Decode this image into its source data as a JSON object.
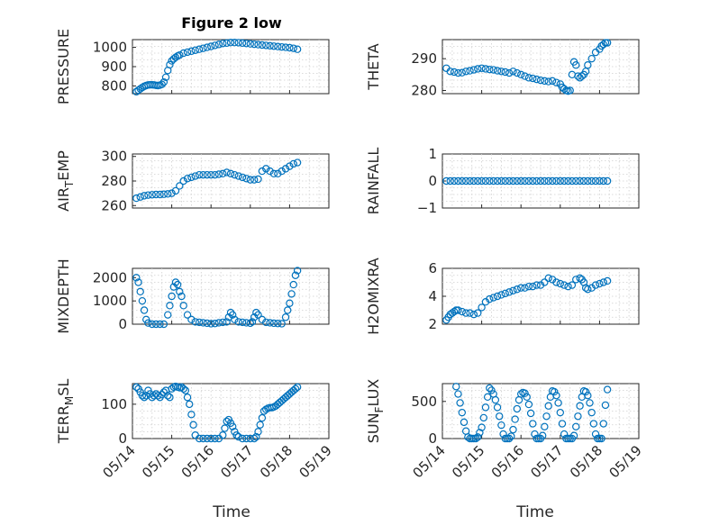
{
  "title": "Figure 2 low",
  "x_axis_label": "Time",
  "x_tick_labels": [
    "05/14",
    "05/15",
    "05/16",
    "05/17",
    "05/18",
    "05/19"
  ],
  "chart_data": [
    {
      "type": "scatter",
      "ylabel": "PRESSURE",
      "ylim": [
        760,
        1040
      ],
      "yticks": [
        800,
        900,
        1000
      ],
      "xlim": [
        0,
        5
      ],
      "grid": "on",
      "marker_color": "#0072BD",
      "x": [
        0.1,
        0.15,
        0.2,
        0.25,
        0.3,
        0.35,
        0.4,
        0.45,
        0.5,
        0.55,
        0.6,
        0.65,
        0.7,
        0.75,
        0.8,
        0.85,
        0.9,
        0.95,
        1.0,
        1.05,
        1.1,
        1.15,
        1.2,
        1.3,
        1.4,
        1.5,
        1.6,
        1.7,
        1.8,
        1.9,
        2.0,
        2.1,
        2.2,
        2.3,
        2.4,
        2.5,
        2.6,
        2.7,
        2.8,
        2.9,
        3.0,
        3.1,
        3.2,
        3.3,
        3.4,
        3.5,
        3.6,
        3.7,
        3.8,
        3.9,
        4.0,
        4.1,
        4.2
      ],
      "y": [
        770,
        778,
        785,
        792,
        798,
        802,
        805,
        806,
        806,
        805,
        803,
        802,
        804,
        808,
        820,
        845,
        880,
        910,
        930,
        940,
        948,
        955,
        960,
        970,
        975,
        980,
        985,
        990,
        995,
        1000,
        1005,
        1010,
        1015,
        1020,
        1022,
        1025,
        1025,
        1024,
        1022,
        1020,
        1018,
        1016,
        1014,
        1012,
        1010,
        1008,
        1006,
        1004,
        1002,
        1000,
        998,
        995,
        990
      ]
    },
    {
      "type": "scatter",
      "ylabel": "THETA",
      "ylim": [
        279,
        296
      ],
      "yticks": [
        280,
        290
      ],
      "xlim": [
        0,
        5
      ],
      "grid": "on",
      "marker_color": "#0072BD",
      "x": [
        0.1,
        0.2,
        0.3,
        0.4,
        0.5,
        0.6,
        0.7,
        0.8,
        0.9,
        1.0,
        1.1,
        1.2,
        1.3,
        1.4,
        1.5,
        1.6,
        1.7,
        1.8,
        1.9,
        2.0,
        2.1,
        2.2,
        2.3,
        2.4,
        2.5,
        2.6,
        2.7,
        2.8,
        2.9,
        3.0,
        3.05,
        3.1,
        3.15,
        3.2,
        3.25,
        3.3,
        3.35,
        3.4,
        3.45,
        3.5,
        3.55,
        3.6,
        3.65,
        3.7,
        3.8,
        3.9,
        4.0,
        4.05,
        4.1,
        4.15,
        4.2
      ],
      "y": [
        287,
        286,
        285.8,
        285.5,
        285.6,
        286,
        286.2,
        286.5,
        286.8,
        287,
        286.8,
        286.6,
        286.5,
        286.2,
        286,
        285.8,
        285.5,
        286,
        285.5,
        285,
        284.5,
        284,
        283.8,
        283.5,
        283.2,
        283,
        282.8,
        283,
        282.5,
        282,
        281,
        280.5,
        280,
        279.8,
        280,
        285,
        289,
        288,
        284.5,
        284,
        284.5,
        285,
        286,
        288,
        290,
        292,
        293,
        294,
        294.5,
        295,
        295
      ]
    },
    {
      "type": "scatter",
      "ylabel": "AIR_TEMP",
      "ylim": [
        258,
        302
      ],
      "yticks": [
        260,
        280,
        300
      ],
      "xlim": [
        0,
        5
      ],
      "grid": "on",
      "marker_color": "#0072BD",
      "x": [
        0.1,
        0.2,
        0.3,
        0.4,
        0.5,
        0.6,
        0.7,
        0.8,
        0.9,
        1.0,
        1.1,
        1.2,
        1.3,
        1.4,
        1.5,
        1.6,
        1.7,
        1.8,
        1.9,
        2.0,
        2.1,
        2.2,
        2.3,
        2.4,
        2.5,
        2.6,
        2.7,
        2.8,
        2.9,
        3.0,
        3.1,
        3.2,
        3.3,
        3.4,
        3.5,
        3.6,
        3.7,
        3.8,
        3.9,
        4.0,
        4.1,
        4.2
      ],
      "y": [
        266,
        267,
        268,
        268.5,
        268.8,
        269,
        269,
        269.2,
        269.5,
        270,
        272,
        276,
        280,
        282,
        283,
        284,
        285,
        285,
        285,
        285,
        285,
        285.5,
        286,
        287,
        286,
        285,
        284,
        283,
        282,
        281,
        281,
        281.5,
        288,
        290,
        288,
        286,
        286,
        288,
        290,
        292,
        294,
        295
      ]
    },
    {
      "type": "scatter",
      "ylabel": "RAINFALL",
      "ylim": [
        -1,
        1
      ],
      "yticks": [
        -1,
        0,
        1
      ],
      "xlim": [
        0,
        5
      ],
      "grid": "on",
      "marker_color": "#0072BD",
      "x": [
        0.1,
        0.2,
        0.3,
        0.4,
        0.5,
        0.6,
        0.7,
        0.8,
        0.9,
        1.0,
        1.1,
        1.2,
        1.3,
        1.4,
        1.5,
        1.6,
        1.7,
        1.8,
        1.9,
        2.0,
        2.1,
        2.2,
        2.3,
        2.4,
        2.5,
        2.6,
        2.7,
        2.8,
        2.9,
        3.0,
        3.1,
        3.2,
        3.3,
        3.4,
        3.5,
        3.6,
        3.7,
        3.8,
        3.9,
        4.0,
        4.1,
        4.2
      ],
      "y": [
        0,
        0,
        0,
        0,
        0,
        0,
        0,
        0,
        0,
        0,
        0,
        0,
        0,
        0,
        0,
        0,
        0,
        0,
        0,
        0,
        0,
        0,
        0,
        0,
        0,
        0,
        0,
        0,
        0,
        0,
        0,
        0,
        0,
        0,
        0,
        0,
        0,
        0,
        0,
        0,
        0,
        0
      ]
    },
    {
      "type": "scatter",
      "ylabel": "MIXDEPTH",
      "ylim": [
        0,
        2400
      ],
      "yticks": [
        0,
        1000,
        2000
      ],
      "xlim": [
        0,
        5
      ],
      "grid": "on",
      "marker_color": "#0072BD",
      "x": [
        0.1,
        0.15,
        0.2,
        0.25,
        0.3,
        0.35,
        0.4,
        0.5,
        0.6,
        0.7,
        0.8,
        0.9,
        0.95,
        1.0,
        1.05,
        1.1,
        1.15,
        1.2,
        1.25,
        1.3,
        1.4,
        1.5,
        1.6,
        1.7,
        1.8,
        1.9,
        2.0,
        2.1,
        2.2,
        2.3,
        2.4,
        2.45,
        2.5,
        2.55,
        2.6,
        2.7,
        2.8,
        2.9,
        3.0,
        3.05,
        3.1,
        3.15,
        3.2,
        3.3,
        3.4,
        3.5,
        3.6,
        3.7,
        3.8,
        3.9,
        3.95,
        4.0,
        4.05,
        4.1,
        4.15,
        4.2
      ],
      "y": [
        2000,
        1800,
        1400,
        1000,
        600,
        200,
        50,
        0,
        0,
        0,
        0,
        400,
        800,
        1200,
        1600,
        1800,
        1700,
        1400,
        1200,
        800,
        400,
        200,
        100,
        80,
        60,
        40,
        20,
        30,
        60,
        80,
        100,
        300,
        500,
        400,
        200,
        100,
        80,
        60,
        40,
        100,
        300,
        500,
        400,
        200,
        80,
        60,
        40,
        30,
        20,
        300,
        600,
        900,
        1300,
        1700,
        2100,
        2300
      ]
    },
    {
      "type": "scatter",
      "ylabel": "H2OMIXRA",
      "ylim": [
        2,
        6
      ],
      "yticks": [
        2,
        4,
        6
      ],
      "xlim": [
        0,
        5
      ],
      "grid": "on",
      "marker_color": "#0072BD",
      "x": [
        0.1,
        0.15,
        0.2,
        0.25,
        0.3,
        0.35,
        0.4,
        0.5,
        0.6,
        0.7,
        0.8,
        0.9,
        1.0,
        1.1,
        1.2,
        1.3,
        1.4,
        1.5,
        1.6,
        1.7,
        1.8,
        1.9,
        2.0,
        2.1,
        2.2,
        2.3,
        2.4,
        2.5,
        2.6,
        2.7,
        2.8,
        2.9,
        3.0,
        3.1,
        3.2,
        3.3,
        3.4,
        3.5,
        3.55,
        3.6,
        3.65,
        3.7,
        3.8,
        3.9,
        4.0,
        4.1,
        4.2
      ],
      "y": [
        2.3,
        2.5,
        2.7,
        2.8,
        2.9,
        3.0,
        3.0,
        2.9,
        2.8,
        2.8,
        2.7,
        2.8,
        3.2,
        3.6,
        3.8,
        3.9,
        4.0,
        4.1,
        4.2,
        4.3,
        4.4,
        4.5,
        4.6,
        4.6,
        4.7,
        4.7,
        4.8,
        4.8,
        5.0,
        5.3,
        5.2,
        5.0,
        4.9,
        4.8,
        4.7,
        4.8,
        5.2,
        5.3,
        5.2,
        5.0,
        4.6,
        4.5,
        4.6,
        4.8,
        4.9,
        5.0,
        5.1
      ]
    },
    {
      "type": "scatter",
      "ylabel": "TERR_MSL",
      "ylim": [
        0,
        160
      ],
      "yticks": [
        0,
        100
      ],
      "xlim": [
        0,
        5
      ],
      "grid": "on",
      "marker_color": "#0072BD",
      "x": [
        0.1,
        0.15,
        0.2,
        0.25,
        0.3,
        0.35,
        0.4,
        0.45,
        0.5,
        0.55,
        0.6,
        0.65,
        0.7,
        0.75,
        0.8,
        0.85,
        0.9,
        0.95,
        1.0,
        1.05,
        1.1,
        1.15,
        1.2,
        1.25,
        1.3,
        1.35,
        1.4,
        1.45,
        1.5,
        1.55,
        1.6,
        1.7,
        1.8,
        1.9,
        2.0,
        2.1,
        2.2,
        2.3,
        2.35,
        2.4,
        2.45,
        2.5,
        2.55,
        2.6,
        2.65,
        2.7,
        2.8,
        2.9,
        3.0,
        3.1,
        3.15,
        3.2,
        3.25,
        3.3,
        3.35,
        3.4,
        3.45,
        3.5,
        3.55,
        3.6,
        3.65,
        3.7,
        3.75,
        3.8,
        3.85,
        3.9,
        3.95,
        4.0,
        4.05,
        4.1,
        4.15,
        4.2
      ],
      "y": [
        150,
        145,
        135,
        125,
        120,
        125,
        140,
        130,
        120,
        125,
        130,
        125,
        120,
        128,
        135,
        140,
        125,
        120,
        145,
        150,
        152,
        150,
        148,
        150,
        145,
        140,
        120,
        100,
        70,
        40,
        10,
        0,
        0,
        0,
        0,
        0,
        0,
        10,
        30,
        50,
        55,
        45,
        35,
        20,
        10,
        5,
        0,
        0,
        0,
        0,
        5,
        20,
        40,
        60,
        80,
        85,
        88,
        90,
        90,
        92,
        95,
        100,
        105,
        110,
        115,
        120,
        125,
        130,
        135,
        140,
        145,
        150
      ]
    },
    {
      "type": "scatter",
      "ylabel": "SUN_FLUX",
      "ylim": [
        0,
        740
      ],
      "yticks": [
        0,
        500
      ],
      "xlim": [
        0,
        5
      ],
      "grid": "on",
      "marker_color": "#0072BD",
      "x": [
        0.35,
        0.4,
        0.45,
        0.5,
        0.55,
        0.6,
        0.65,
        0.7,
        0.75,
        0.8,
        0.85,
        0.9,
        0.95,
        1.0,
        1.05,
        1.1,
        1.15,
        1.2,
        1.25,
        1.3,
        1.35,
        1.4,
        1.45,
        1.5,
        1.55,
        1.6,
        1.65,
        1.7,
        1.75,
        1.8,
        1.85,
        1.9,
        1.95,
        2.0,
        2.05,
        2.1,
        2.15,
        2.2,
        2.25,
        2.3,
        2.35,
        2.4,
        2.45,
        2.5,
        2.55,
        2.6,
        2.65,
        2.7,
        2.75,
        2.8,
        2.85,
        2.9,
        2.95,
        3.0,
        3.05,
        3.1,
        3.15,
        3.2,
        3.25,
        3.3,
        3.35,
        3.4,
        3.45,
        3.5,
        3.55,
        3.6,
        3.65,
        3.7,
        3.75,
        3.8,
        3.85,
        3.9,
        3.95,
        4.0,
        4.05,
        4.1,
        4.15,
        4.2
      ],
      "y": [
        700,
        600,
        480,
        350,
        220,
        100,
        20,
        0,
        0,
        0,
        0,
        20,
        80,
        150,
        280,
        420,
        560,
        680,
        650,
        600,
        520,
        420,
        300,
        180,
        60,
        0,
        0,
        0,
        30,
        120,
        260,
        400,
        520,
        600,
        620,
        610,
        560,
        460,
        340,
        200,
        60,
        0,
        0,
        0,
        40,
        160,
        300,
        440,
        560,
        640,
        630,
        580,
        480,
        350,
        200,
        60,
        0,
        0,
        0,
        0,
        40,
        160,
        300,
        440,
        560,
        640,
        630,
        580,
        480,
        350,
        200,
        60,
        0,
        0,
        0,
        200,
        450,
        660
      ]
    }
  ]
}
